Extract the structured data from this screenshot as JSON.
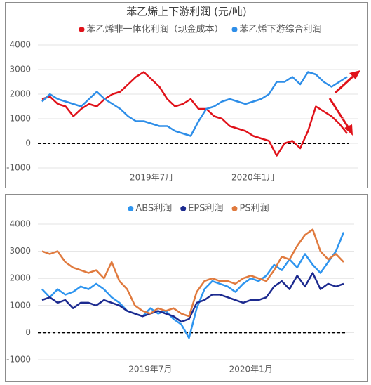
{
  "chart_data": [
    {
      "type": "line",
      "title": "苯乙烯上下游利润 (元/吨)",
      "categories": [
        null,
        null,
        null,
        null,
        null,
        null,
        null,
        null,
        null,
        null,
        null,
        null,
        null,
        null,
        "2019年7月",
        null,
        null,
        null,
        null,
        null,
        null,
        null,
        null,
        null,
        null,
        null,
        null,
        "2020年1月",
        null,
        null,
        null,
        null,
        null,
        null,
        null,
        null,
        null,
        null,
        null,
        null
      ],
      "series": [
        {
          "name": "苯乙烯非一体化利润（现金成本）",
          "color": "#e0121a",
          "values": [
            1800,
            1900,
            1600,
            1500,
            1100,
            1400,
            1600,
            1500,
            1800,
            2000,
            2100,
            2400,
            2700,
            2900,
            2600,
            2300,
            1800,
            1500,
            1600,
            1800,
            1400,
            1400,
            1100,
            1000,
            700,
            600,
            500,
            300,
            200,
            100,
            -500,
            0,
            100,
            -200,
            500,
            1500,
            1300,
            1100,
            800,
            400
          ]
        },
        {
          "name": "苯乙烯下游综合利润",
          "color": "#2e8ee8",
          "values": [
            1700,
            2000,
            1800,
            1700,
            1600,
            1500,
            1800,
            2100,
            1800,
            1600,
            1400,
            1100,
            900,
            900,
            800,
            700,
            700,
            500,
            400,
            300,
            900,
            1400,
            1500,
            1700,
            1800,
            1700,
            1600,
            1700,
            1800,
            2000,
            2500,
            2500,
            2700,
            2400,
            2900,
            2800,
            2500,
            2300,
            2500,
            2700
          ]
        }
      ],
      "ylim": [
        -1000,
        4000
      ],
      "yticks": [
        -1000,
        0,
        1000,
        2000,
        3000,
        4000
      ],
      "grid": true,
      "zero_line": true,
      "legend": "top"
    },
    {
      "type": "line",
      "categories": [
        null,
        null,
        null,
        null,
        null,
        null,
        null,
        null,
        null,
        null,
        null,
        null,
        null,
        null,
        "2019年7月",
        null,
        null,
        null,
        null,
        null,
        null,
        null,
        null,
        null,
        null,
        null,
        null,
        "2020年1月",
        null,
        null,
        null,
        null,
        null,
        null,
        null,
        null,
        null,
        null,
        null,
        null
      ],
      "series": [
        {
          "name": "ABS利润",
          "color": "#2e95ef",
          "values": [
            1600,
            1300,
            1600,
            1400,
            1500,
            1700,
            1600,
            1800,
            1600,
            1300,
            1100,
            800,
            700,
            600,
            900,
            700,
            800,
            500,
            300,
            -200,
            900,
            1600,
            1900,
            1800,
            1700,
            1500,
            1800,
            2000,
            1900,
            2100,
            2500,
            2300,
            2700,
            2400,
            2900,
            2500,
            2200,
            2600,
            3000,
            3700
          ]
        },
        {
          "name": "EPS利润",
          "color": "#1c2a8f",
          "values": [
            1200,
            1300,
            1100,
            1200,
            900,
            1100,
            1100,
            1000,
            1200,
            1100,
            1000,
            800,
            700,
            600,
            700,
            800,
            700,
            600,
            400,
            500,
            1100,
            1200,
            1400,
            1400,
            1300,
            1200,
            1100,
            1200,
            1200,
            1300,
            1700,
            1900,
            1600,
            2100,
            1700,
            2200,
            1600,
            1800,
            1700,
            1800
          ]
        },
        {
          "name": "PS利润",
          "color": "#e07a3e",
          "values": [
            3000,
            2900,
            3000,
            2600,
            2400,
            2300,
            2200,
            2300,
            2000,
            2600,
            1900,
            1600,
            1000,
            800,
            700,
            900,
            800,
            900,
            700,
            600,
            1500,
            1900,
            2000,
            1900,
            1900,
            1800,
            2000,
            2100,
            2000,
            1900,
            2300,
            2800,
            2700,
            3200,
            3600,
            3800,
            3000,
            2700,
            2900,
            2600
          ]
        }
      ],
      "ylim": [
        -1000,
        4000
      ],
      "yticks": [
        -1000,
        0,
        1000,
        2000,
        3000,
        4000
      ],
      "grid": true,
      "zero_line": true,
      "legend": "top"
    }
  ]
}
